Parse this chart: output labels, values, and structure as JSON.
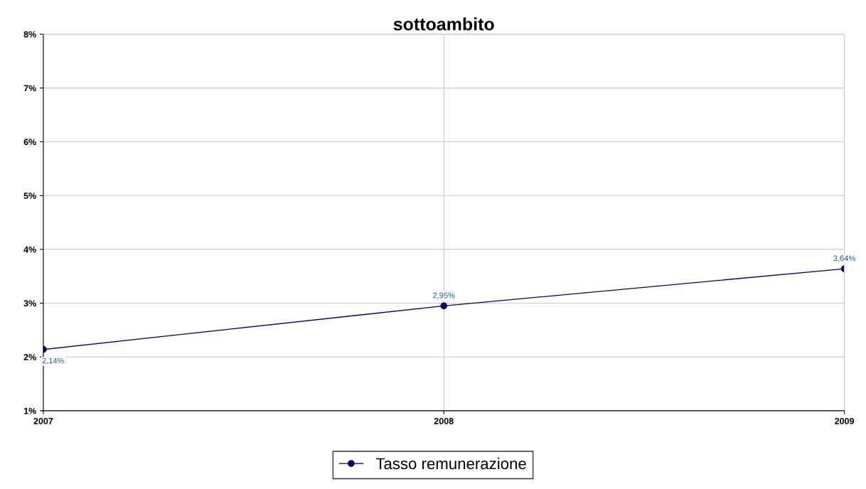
{
  "chart_data": {
    "type": "line",
    "title": "sottoambito",
    "x": [
      2007,
      2008,
      2009
    ],
    "series": [
      {
        "name": "Tasso remunerazione",
        "color": "#000066",
        "values": [
          2.14,
          2.95,
          3.64
        ],
        "value_labels": [
          "2,14%",
          "2,95%",
          "3,64%"
        ]
      }
    ],
    "xlim": [
      2007,
      2009
    ],
    "xticks": [
      2007,
      2008,
      2009
    ],
    "ylim": [
      1,
      8
    ],
    "yticks": [
      {
        "value": 1,
        "label": "1%"
      },
      {
        "value": 2,
        "label": "2%"
      },
      {
        "value": 3,
        "label": "3%"
      },
      {
        "value": 4,
        "label": "4%"
      },
      {
        "value": 5,
        "label": "5%"
      },
      {
        "value": 6,
        "label": "6%"
      },
      {
        "value": 7,
        "label": "7%"
      },
      {
        "value": 8,
        "label": "8%"
      }
    ],
    "grid": true,
    "legend": "bottom",
    "marker": "circle",
    "line_style": "solid"
  }
}
